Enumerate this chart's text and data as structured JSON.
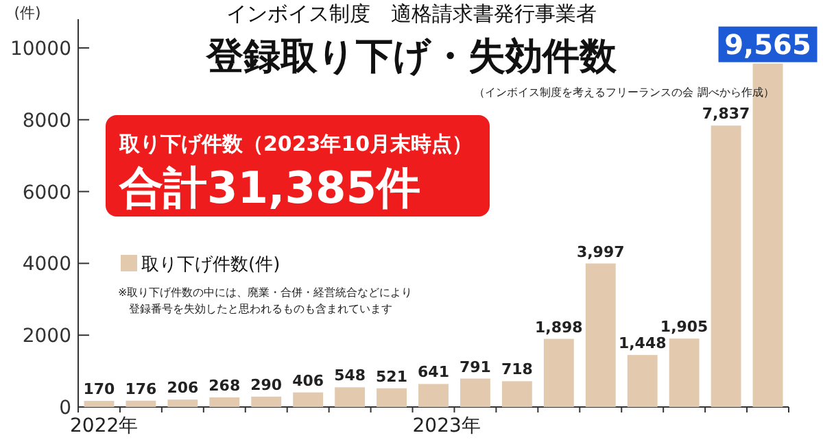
{
  "chart_data": {
    "type": "bar",
    "subtitle": "インボイス制度　適格請求書発行事業者",
    "title": "登録取り下げ・失効件数",
    "ylabel": "(件)",
    "annotations": [
      "（インボイス制度を考えるフリーランスの会  調べから作成）",
      "取り下げ件数（2023年10月末時点）",
      "合計31,385件",
      "※取り下げ件数の中には、廃業・合併・経営統合などにより",
      "登録番号を失効したと思われるものも含まれています"
    ],
    "categories": [
      "2022年",
      null,
      null,
      null,
      null,
      null,
      null,
      null,
      "2023年",
      null,
      null,
      null,
      null,
      null,
      null,
      null,
      null
    ],
    "series": [
      {
        "name": "取り下げ件数(件)",
        "color": "#e3c9ae",
        "values": [
          170,
          176,
          206,
          268,
          290,
          406,
          548,
          521,
          641,
          791,
          718,
          1898,
          3997,
          1448,
          1905,
          7837,
          9565
        ],
        "value_labels": [
          "170",
          "176",
          "206",
          "268",
          "290",
          "406",
          "548",
          "521",
          "641",
          "791",
          "718",
          "1,898",
          "3,997",
          "1,448",
          "1,905",
          "7,837",
          "9,565"
        ]
      }
    ],
    "ylim": [
      0,
      10800
    ],
    "yticks": [
      0,
      2000,
      4000,
      6000,
      8000,
      10000
    ],
    "legend": "left",
    "grid": false
  }
}
